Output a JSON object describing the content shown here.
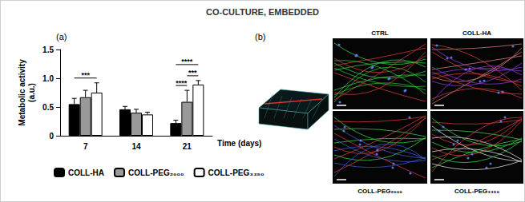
{
  "figure": {
    "title": "CO-CULTURE, EMBEDDED",
    "panels": [
      {
        "label": "(a)"
      },
      {
        "label": "(b)",
        "images": [
          {
            "label": "CTRL"
          },
          {
            "label": "COLL-HA"
          },
          {
            "label": "COLL-PEG₂₀₀₀"
          },
          {
            "label": "COLL-PEG₃₃₅₀"
          }
        ]
      }
    ]
  },
  "chart_data": {
    "type": "bar",
    "xlabel": "Time (days)",
    "ylabel": "Metabolic activity\n(a.u.)",
    "categories": [
      "7",
      "14",
      "21"
    ],
    "series": [
      {
        "name": "COLL-HA",
        "color": "#000000",
        "values": [
          0.55,
          0.46,
          0.22
        ],
        "errors": [
          0.1,
          0.05,
          0.05
        ]
      },
      {
        "name": "COLL-PEG₂₀₀₀",
        "color": "#999999",
        "values": [
          0.67,
          0.4,
          0.59
        ],
        "errors": [
          0.12,
          0.06,
          0.2
        ]
      },
      {
        "name": "COLL-PEG₃₃₅₀",
        "color": "#ffffff",
        "values": [
          0.75,
          0.37,
          0.89
        ],
        "errors": [
          0.17,
          0.04,
          0.07
        ]
      }
    ],
    "ylim": [
      0,
      1.5
    ],
    "yticks": [
      0,
      0.5,
      {
        "value": 1,
        "label": "1.0"
      },
      1.5
    ],
    "grid": false,
    "legend": "bottom",
    "annotations": [
      {
        "category": "7",
        "from": "COLL-HA",
        "to": "COLL-PEG₃₃₅₀",
        "text": "***"
      },
      {
        "category": "21",
        "from": "COLL-HA",
        "to": "COLL-PEG₂₀₀₀",
        "text": "****"
      },
      {
        "category": "21",
        "from": "COLL-PEG₂₀₀₀",
        "to": "COLL-PEG₃₃₅₀",
        "text": "***"
      },
      {
        "category": "21",
        "from": "COLL-HA",
        "to": "COLL-PEG₃₃₅₀",
        "text": "****"
      }
    ]
  }
}
